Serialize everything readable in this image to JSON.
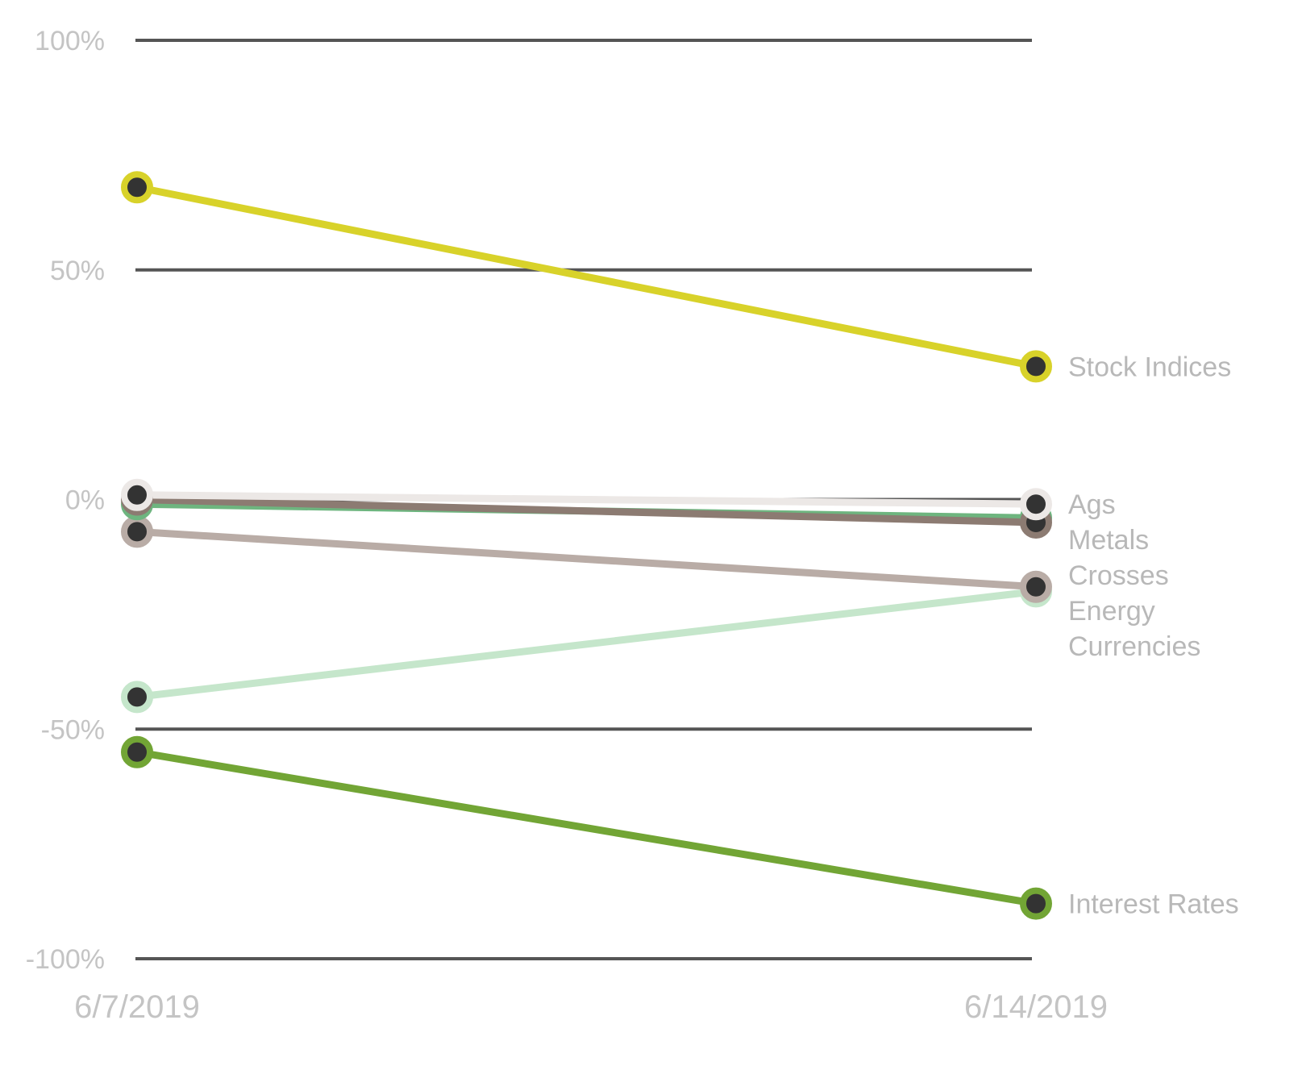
{
  "chart_data": {
    "type": "line",
    "x": [
      "6/7/2019",
      "6/14/2019"
    ],
    "ylim": [
      -100,
      100
    ],
    "yticks": [
      {
        "value": 100,
        "label": "100%"
      },
      {
        "value": 50,
        "label": "50%"
      },
      {
        "value": 0,
        "label": "0%"
      },
      {
        "value": -50,
        "label": "-50%"
      },
      {
        "value": -100,
        "label": "-100%"
      }
    ],
    "grid": true,
    "series": [
      {
        "name": "Currencies",
        "values": [
          -43,
          -20
        ],
        "color": "#c5e6cb"
      },
      {
        "name": "Energy",
        "values": [
          -7,
          -19
        ],
        "color": "#b9aca6"
      },
      {
        "name": "Metals",
        "values": [
          -1,
          -4
        ],
        "color": "#6eb57f"
      },
      {
        "name": "Crosses",
        "values": [
          0,
          -5
        ],
        "color": "#8c7b72"
      },
      {
        "name": "Ags",
        "values": [
          1,
          -1
        ],
        "color": "#ece8e6"
      },
      {
        "name": "Stock Indices",
        "values": [
          68,
          29
        ],
        "color": "#d8d22a"
      },
      {
        "name": "Interest Rates",
        "values": [
          -55,
          -88
        ],
        "color": "#72a535"
      }
    ]
  }
}
